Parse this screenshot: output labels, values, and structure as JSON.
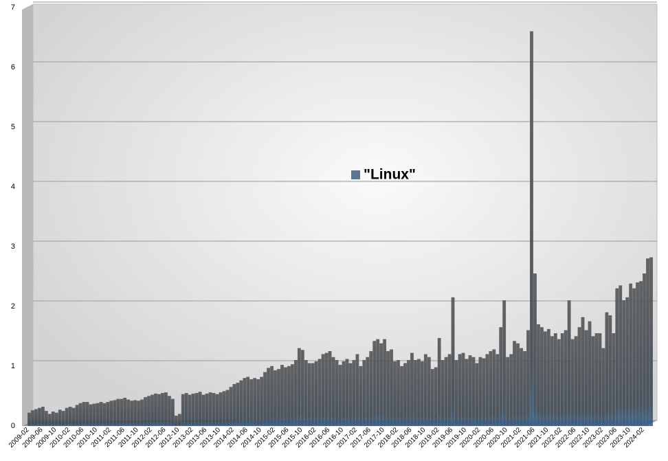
{
  "chart_data": {
    "type": "bar",
    "legend_label": "\"Linux\"",
    "color": "#4f5c68",
    "categories": [
      "2009-02",
      null,
      null,
      null,
      "2009-06",
      null,
      null,
      null,
      "2009-10",
      null,
      null,
      null,
      "2010-02",
      null,
      null,
      null,
      "2010-06",
      null,
      null,
      null,
      "2010-10",
      null,
      null,
      null,
      "2011-02",
      null,
      null,
      null,
      "2011-06",
      null,
      null,
      null,
      "2011-10",
      null,
      null,
      null,
      "2012-02",
      null,
      null,
      null,
      "2012-06",
      null,
      null,
      null,
      "2012-10",
      null,
      null,
      null,
      "2013-02",
      null,
      null,
      null,
      "2013-06",
      null,
      null,
      null,
      "2013-10",
      null,
      null,
      null,
      "2014-02",
      null,
      null,
      null,
      "2014-06",
      null,
      null,
      null,
      "2014-10",
      null,
      null,
      null,
      "2015-02",
      null,
      null,
      null,
      "2015-06",
      null,
      null,
      null,
      "2015-10",
      null,
      null,
      null,
      "2016-02",
      null,
      null,
      null,
      "2016-06",
      null,
      null,
      null,
      "2016-10",
      null,
      null,
      null,
      "2017-02",
      null,
      null,
      null,
      "2017-06",
      null,
      null,
      null,
      "2017-10",
      null,
      null,
      null,
      "2018-02",
      null,
      null,
      null,
      "2018-06",
      null,
      null,
      null,
      "2018-10",
      null,
      null,
      null,
      "2019-02",
      null,
      null,
      null,
      "2019-06",
      null,
      null,
      null,
      "2019-10",
      null,
      null,
      null,
      "2020-02",
      null,
      null,
      null,
      "2020-06",
      null,
      null,
      null,
      "2020-10",
      null,
      null,
      null,
      "2021-02",
      null,
      null,
      null,
      "2021-06",
      null,
      null,
      null,
      "2021-10",
      null,
      null,
      null,
      "2022-02",
      null,
      null,
      null,
      "2022-06",
      null,
      null,
      null,
      "2022-10",
      null,
      null,
      null,
      "2023-02",
      null,
      null,
      null,
      "2023-06",
      null,
      null,
      null,
      "2023-10",
      null,
      null,
      null,
      "2024-02",
      null,
      null
    ],
    "values": [
      0.22,
      0.26,
      0.28,
      0.3,
      0.32,
      0.25,
      0.2,
      0.24,
      0.22,
      0.27,
      0.25,
      0.3,
      0.32,
      0.3,
      0.35,
      0.38,
      0.4,
      0.4,
      0.36,
      0.37,
      0.38,
      0.4,
      0.38,
      0.4,
      0.42,
      0.43,
      0.45,
      0.45,
      0.47,
      0.44,
      0.42,
      0.43,
      0.42,
      0.44,
      0.48,
      0.5,
      0.52,
      0.54,
      0.53,
      0.55,
      0.56,
      0.5,
      0.45,
      0.17,
      0.2,
      0.53,
      0.55,
      0.52,
      0.54,
      0.55,
      0.57,
      0.52,
      0.54,
      0.56,
      0.55,
      0.53,
      0.56,
      0.58,
      0.6,
      0.65,
      0.7,
      0.72,
      0.76,
      0.8,
      0.82,
      0.78,
      0.8,
      0.78,
      0.82,
      0.9,
      0.97,
      1.0,
      0.93,
      0.95,
      1.02,
      0.98,
      1.0,
      1.03,
      1.1,
      1.3,
      1.27,
      1.1,
      1.05,
      1.05,
      1.08,
      1.12,
      1.2,
      1.22,
      1.25,
      1.15,
      1.1,
      1.02,
      1.08,
      1.12,
      1.05,
      1.1,
      1.2,
      1.0,
      1.1,
      1.15,
      1.25,
      1.42,
      1.45,
      1.38,
      1.45,
      1.25,
      1.28,
      1.08,
      1.1,
      1.0,
      1.05,
      1.1,
      1.22,
      1.1,
      1.12,
      1.08,
      1.2,
      1.15,
      0.95,
      0.98,
      1.47,
      1.1,
      1.15,
      1.2,
      2.15,
      1.1,
      1.2,
      1.22,
      1.12,
      1.18,
      1.15,
      1.05,
      1.15,
      1.13,
      1.2,
      1.25,
      1.28,
      1.2,
      1.65,
      2.1,
      1.15,
      1.2,
      1.42,
      1.38,
      1.3,
      1.25,
      1.6,
      6.6,
      2.55,
      1.7,
      1.65,
      1.58,
      1.62,
      1.5,
      1.55,
      1.45,
      1.55,
      1.6,
      2.1,
      1.45,
      1.5,
      1.65,
      1.82,
      1.6,
      1.75,
      1.5,
      1.55,
      1.55,
      1.3,
      1.9,
      1.85,
      1.55,
      2.3,
      2.35,
      2.1,
      2.15,
      2.38,
      2.3,
      2.4,
      2.42,
      2.55,
      2.8,
      2.82
    ],
    "ylim": [
      0,
      7
    ],
    "yticks": [
      0,
      1,
      2,
      3,
      4,
      5,
      6,
      7
    ],
    "grid": true
  }
}
